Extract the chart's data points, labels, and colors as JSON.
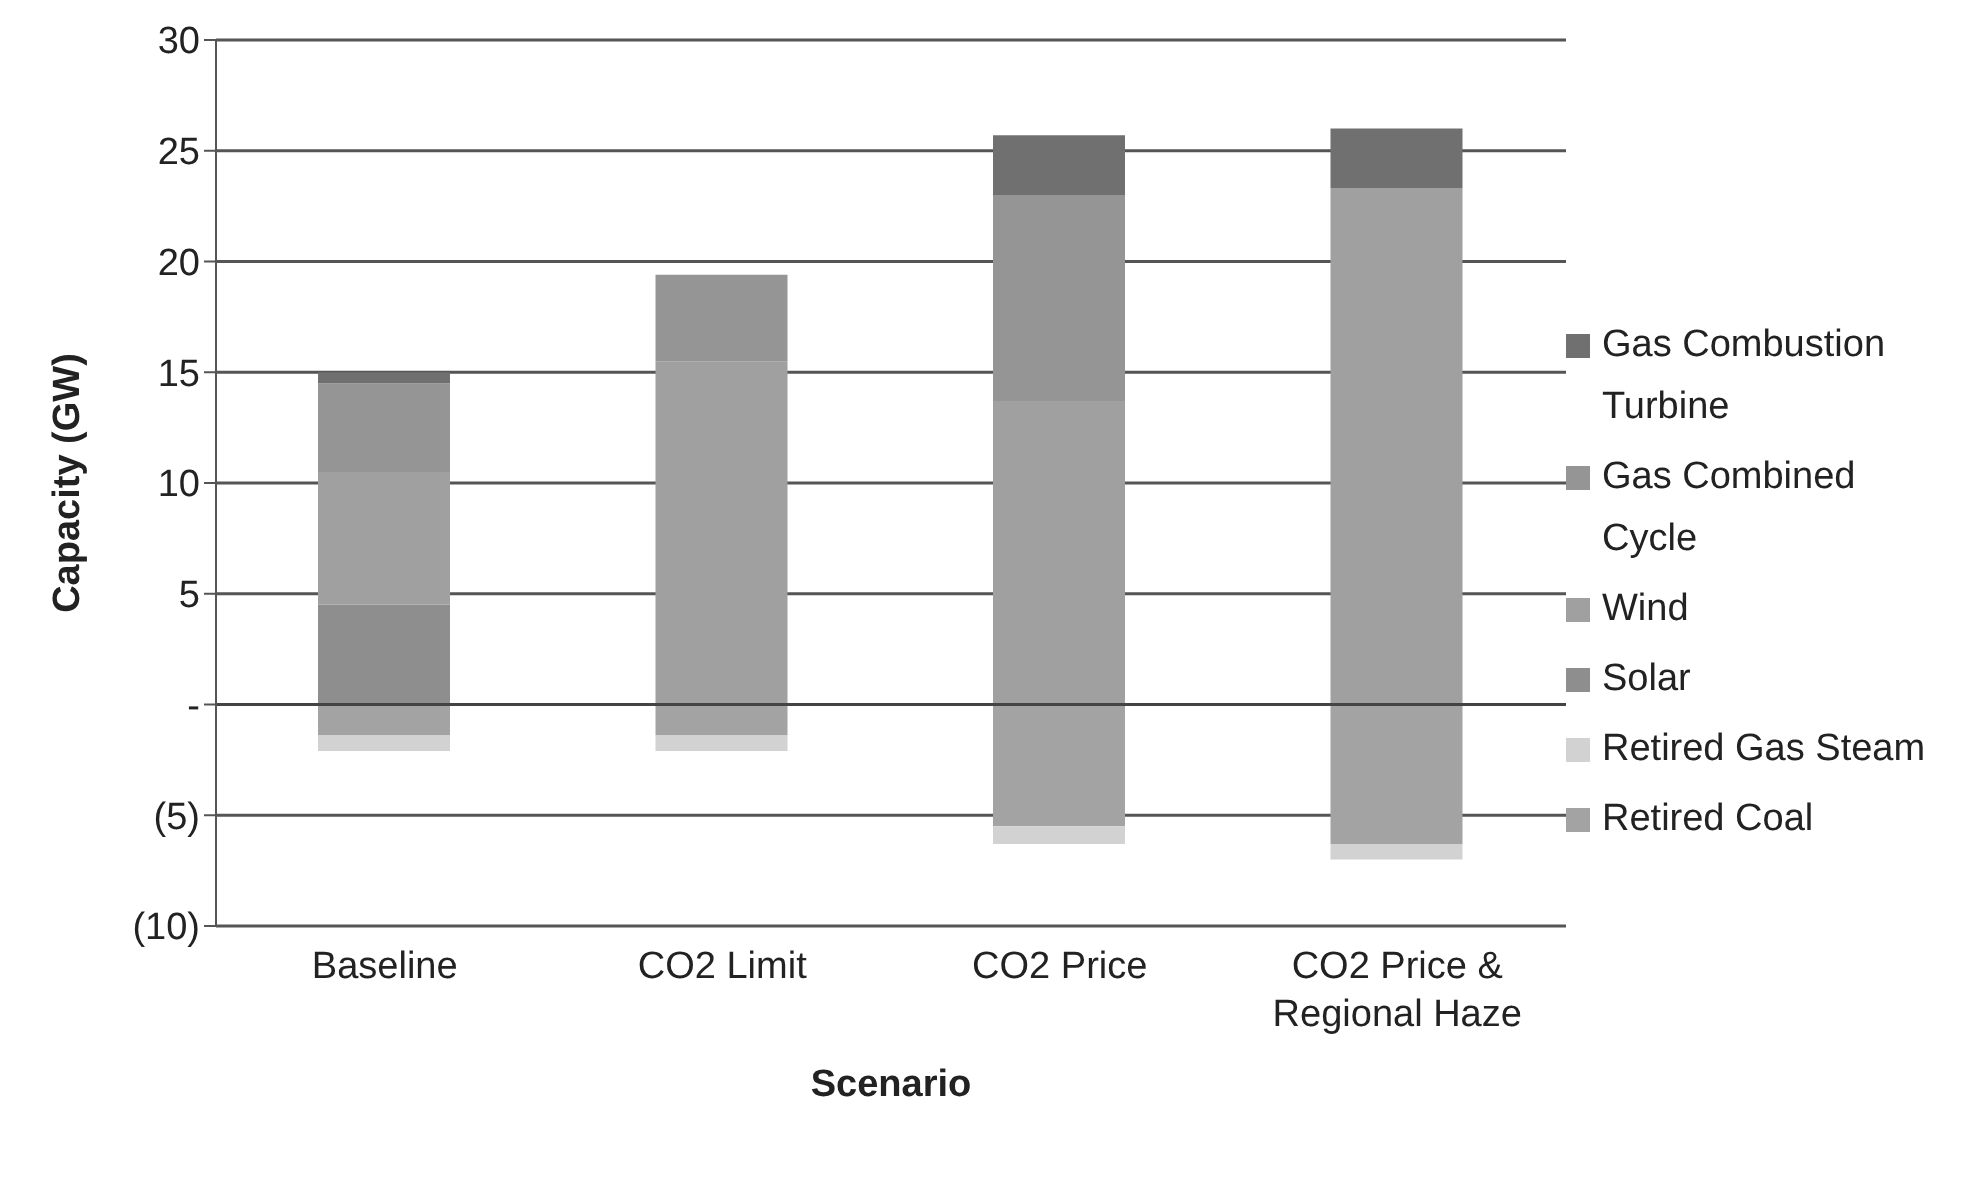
{
  "chart_data": {
    "type": "bar",
    "stacked": true,
    "xlabel": "Scenario",
    "ylabel": "Capacity (GW)",
    "categories": [
      "Baseline",
      "CO2 Limit",
      "CO2 Price",
      "CO2 Price & Regional Haze"
    ],
    "series": [
      {
        "name": "Retired Coal",
        "color": "#a3a3a3",
        "values": [
          -1.4,
          -1.4,
          -5.5,
          -6.3
        ]
      },
      {
        "name": "Retired Gas Steam",
        "color": "#d2d2d2",
        "values": [
          -0.7,
          -0.7,
          -0.8,
          -0.7
        ]
      },
      {
        "name": "Solar",
        "color": "#8e8e8e",
        "values": [
          4.5,
          0,
          0,
          0
        ]
      },
      {
        "name": "Wind",
        "color": "#a0a0a0",
        "values": [
          6.0,
          15.5,
          13.7,
          23.3
        ]
      },
      {
        "name": "Gas Combined Cycle",
        "color": "#959595",
        "values": [
          4.0,
          3.9,
          9.3,
          0
        ]
      },
      {
        "name": "Gas Combustion Turbine",
        "color": "#707070",
        "values": [
          0.5,
          0,
          2.7,
          2.7
        ]
      }
    ],
    "ylim": [
      -10,
      30
    ],
    "yticks": [
      {
        "value": -10,
        "label": "(10)"
      },
      {
        "value": -5,
        "label": "(5)"
      },
      {
        "value": 0,
        "label": "-"
      },
      5,
      10,
      15,
      20,
      25,
      30
    ],
    "grid": "y",
    "legend": "right"
  }
}
